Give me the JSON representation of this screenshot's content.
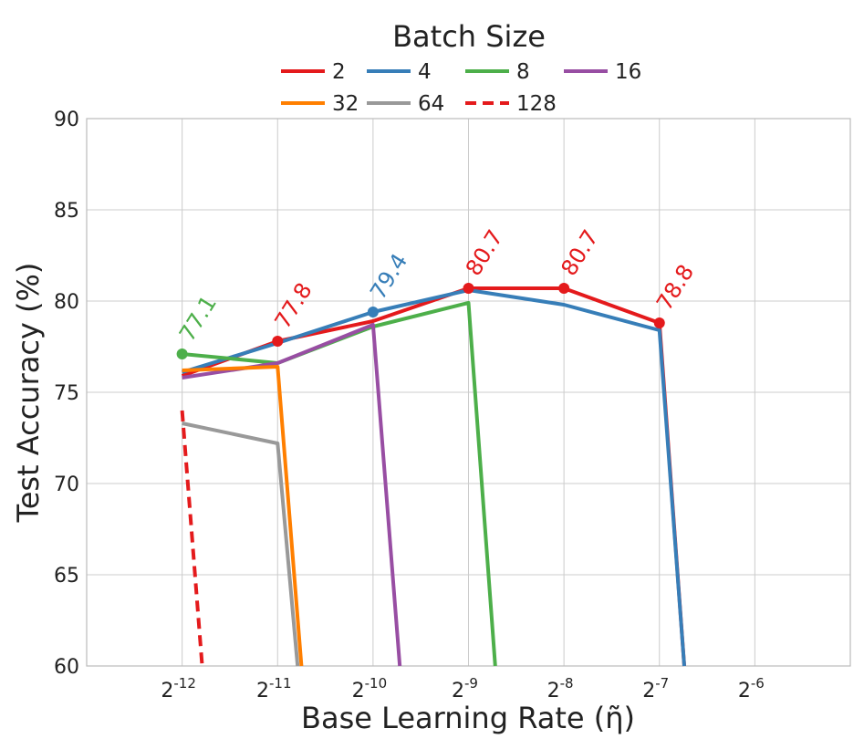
{
  "chart_data": {
    "type": "line",
    "x_scale": "log2",
    "x_tick_base": "2",
    "x_tick_exponents": [
      -12,
      -11,
      -10,
      -9,
      -8,
      -7,
      -6
    ],
    "xlim_log2": [
      -13,
      -5
    ],
    "xlabel": "Base Learning Rate (η̃)",
    "ylabel": "Test Accuracy (%)",
    "ylim": [
      60,
      90
    ],
    "y_ticks": [
      60,
      65,
      70,
      75,
      80,
      85,
      90
    ],
    "grid": true,
    "legend": {
      "title": "Batch Size",
      "placement": "top-center",
      "columns": 4
    },
    "series": [
      {
        "name": "2",
        "color": "#e41a1c",
        "dash": false,
        "points": [
          [
            -12,
            75.9
          ],
          [
            -11,
            77.8
          ],
          [
            -10,
            78.9
          ],
          [
            -9,
            80.7
          ],
          [
            -8,
            80.7
          ],
          [
            -7,
            78.8
          ],
          [
            -6.74,
            60
          ]
        ]
      },
      {
        "name": "4",
        "color": "#377eb8",
        "dash": false,
        "points": [
          [
            -12,
            76.1
          ],
          [
            -11,
            77.7
          ],
          [
            -10,
            79.4
          ],
          [
            -9,
            80.6
          ],
          [
            -8,
            79.8
          ],
          [
            -7,
            78.4
          ],
          [
            -6.74,
            60
          ]
        ]
      },
      {
        "name": "8",
        "color": "#4daf4a",
        "dash": false,
        "points": [
          [
            -12,
            77.1
          ],
          [
            -11,
            76.6
          ],
          [
            -10,
            78.6
          ],
          [
            -9,
            79.9
          ],
          [
            -8.72,
            60
          ]
        ]
      },
      {
        "name": "16",
        "color": "#984ea3",
        "dash": false,
        "points": [
          [
            -12,
            75.8
          ],
          [
            -11,
            76.6
          ],
          [
            -10,
            78.7
          ],
          [
            -9.72,
            60
          ]
        ]
      },
      {
        "name": "32",
        "color": "#ff7f00",
        "dash": false,
        "points": [
          [
            -12,
            76.2
          ],
          [
            -11,
            76.4
          ],
          [
            -10.75,
            60
          ]
        ]
      },
      {
        "name": "64",
        "color": "#999999",
        "dash": false,
        "points": [
          [
            -12,
            73.3
          ],
          [
            -11,
            72.2
          ],
          [
            -10.79,
            60
          ]
        ]
      },
      {
        "name": "128",
        "color": "#e41a1c",
        "dash": true,
        "points": [
          [
            -12,
            74.0
          ],
          [
            -11.79,
            60
          ]
        ]
      }
    ],
    "annotations": [
      {
        "text": "77.1",
        "x": -12,
        "y": 77.1,
        "color": "#4daf4a"
      },
      {
        "text": "77.8",
        "x": -11,
        "y": 77.8,
        "color": "#e41a1c"
      },
      {
        "text": "79.4",
        "x": -10,
        "y": 79.4,
        "color": "#377eb8"
      },
      {
        "text": "80.7",
        "x": -9,
        "y": 80.7,
        "color": "#e41a1c"
      },
      {
        "text": "80.7",
        "x": -8,
        "y": 80.7,
        "color": "#e41a1c"
      },
      {
        "text": "78.8",
        "x": -7,
        "y": 78.8,
        "color": "#e41a1c"
      }
    ]
  }
}
